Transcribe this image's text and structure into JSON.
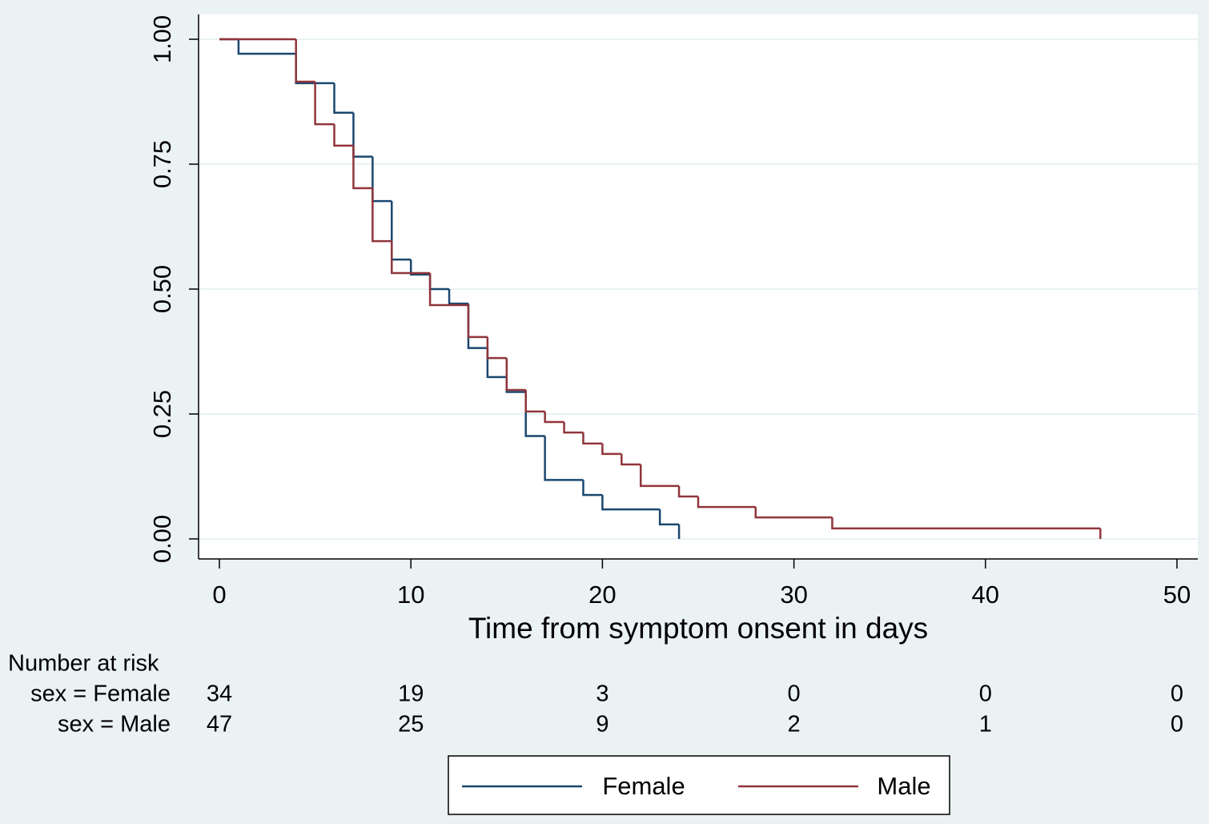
{
  "chart_data": {
    "type": "step",
    "xlabel": "Time from symptom onsent in days",
    "xlim": [
      0,
      50
    ],
    "xticks": [
      0,
      10,
      20,
      30,
      40,
      50
    ],
    "ylim": [
      0,
      1
    ],
    "yticks": [
      {
        "value": 0,
        "label": "0.00"
      },
      {
        "value": 0.25,
        "label": "0.25"
      },
      {
        "value": 0.5,
        "label": "0.50"
      },
      {
        "value": 0.75,
        "label": "0.75"
      },
      {
        "value": 1,
        "label": "1.00"
      }
    ],
    "grid": true,
    "series": [
      {
        "name": "Female",
        "color": "#1a476f",
        "x": [
          0,
          1,
          4,
          6,
          7,
          8,
          9,
          10,
          11,
          12,
          13,
          14,
          15,
          16,
          17,
          19,
          20,
          23,
          24
        ],
        "values": [
          1,
          0.971,
          0.912,
          0.853,
          0.765,
          0.676,
          0.559,
          0.529,
          0.5,
          0.471,
          0.382,
          0.324,
          0.294,
          0.206,
          0.118,
          0.088,
          0.059,
          0.029,
          0
        ]
      },
      {
        "name": "Male",
        "color": "#90353b",
        "x": [
          0,
          4,
          5,
          6,
          7,
          8,
          9,
          11,
          13,
          14,
          15,
          16,
          17,
          18,
          19,
          20,
          21,
          22,
          24,
          25,
          28,
          32,
          46
        ],
        "values": [
          1,
          0.915,
          0.83,
          0.787,
          0.702,
          0.596,
          0.532,
          0.468,
          0.404,
          0.362,
          0.298,
          0.255,
          0.234,
          0.213,
          0.191,
          0.17,
          0.149,
          0.106,
          0.085,
          0.064,
          0.043,
          0.021,
          0
        ]
      }
    ],
    "risk_table": {
      "title": "Number at risk",
      "rows": [
        {
          "label": "sex = Female",
          "values": [
            34,
            19,
            3,
            0,
            0,
            0
          ]
        },
        {
          "label": "sex = Male",
          "values": [
            47,
            25,
            9,
            2,
            1,
            0
          ]
        }
      ]
    }
  }
}
